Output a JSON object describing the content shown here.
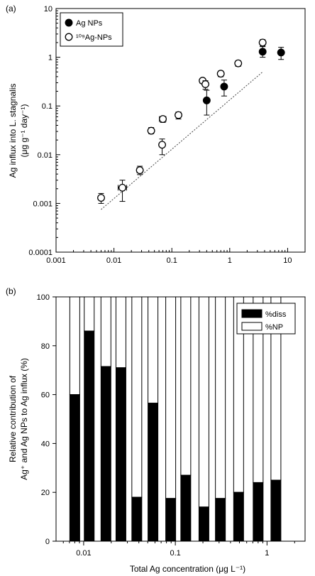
{
  "chart_data": [
    {
      "panel_label": "(a)",
      "type": "scatter",
      "y_scale": "log",
      "x_scale": "log",
      "xlim": [
        0.001,
        20
      ],
      "ylim": [
        0.0001,
        10
      ],
      "xticks": [
        {
          "v": 0.001,
          "label": "0.001"
        },
        {
          "v": 0.01,
          "label": "0.01"
        },
        {
          "v": 0.1,
          "label": "0.1"
        },
        {
          "v": 1,
          "label": "1"
        },
        {
          "v": 10,
          "label": "10"
        }
      ],
      "yticks": [
        {
          "v": 10,
          "label": "10"
        },
        {
          "v": 1,
          "label": "1"
        },
        {
          "v": 0.1,
          "label": "0.1"
        },
        {
          "v": 0.01,
          "label": "0.01"
        },
        {
          "v": 0.001,
          "label": "0.001"
        },
        {
          "v": 0.0001,
          "label": "0.0001"
        }
      ],
      "ylabel_line1": "Ag influx into L. stagnalis",
      "ylabel_line2": "(μg g⁻¹ day⁻¹)",
      "legend_position": "top-left",
      "series": [
        {
          "name": "Ag NPs",
          "marker": "filled-circle",
          "points": [
            {
              "x": 0.4,
              "y": 0.13,
              "ylo": 0.065,
              "yhi": 0.21
            },
            {
              "x": 0.8,
              "y": 0.25,
              "ylo": 0.16,
              "yhi": 0.34
            },
            {
              "x": 3.7,
              "y": 1.3,
              "ylo": 1.0,
              "yhi": 1.65
            },
            {
              "x": 7.7,
              "y": 1.25,
              "ylo": 0.9,
              "yhi": 1.6
            }
          ]
        },
        {
          "name": "¹⁰⁹Ag-NPs",
          "marker": "open-circle",
          "points": [
            {
              "x": 0.006,
              "y": 0.0013,
              "ylo": 0.001,
              "yhi": 0.0016,
              "xlo": 0.0055,
              "xhi": 0.0066
            },
            {
              "x": 0.014,
              "y": 0.0021,
              "ylo": 0.0011,
              "yhi": 0.003,
              "xlo": 0.0118,
              "xhi": 0.0165
            },
            {
              "x": 0.028,
              "y": 0.0048,
              "ylo": 0.0039,
              "yhi": 0.0058,
              "xlo": 0.025,
              "xhi": 0.031
            },
            {
              "x": 0.044,
              "y": 0.031,
              "ylo": 0.027,
              "yhi": 0.036
            },
            {
              "x": 0.068,
              "y": 0.016,
              "ylo": 0.01,
              "yhi": 0.021
            },
            {
              "x": 0.07,
              "y": 0.054,
              "ylo": 0.046,
              "yhi": 0.06,
              "xlo": 0.061,
              "xhi": 0.079
            },
            {
              "x": 0.13,
              "y": 0.065,
              "ylo": 0.054,
              "yhi": 0.075
            },
            {
              "x": 0.34,
              "y": 0.33,
              "ylo": 0.29,
              "yhi": 0.36
            },
            {
              "x": 0.38,
              "y": 0.28,
              "ylo": 0.22,
              "yhi": 0.33
            },
            {
              "x": 0.7,
              "y": 0.46,
              "ylo": 0.4,
              "yhi": 0.52
            },
            {
              "x": 1.4,
              "y": 0.75,
              "ylo": 0.65,
              "yhi": 0.85
            },
            {
              "x": 3.7,
              "y": 2.0,
              "ylo": 1.7,
              "yhi": 2.3
            }
          ]
        }
      ],
      "reference_line": {
        "style": "dotted",
        "points": [
          {
            "x": 0.006,
            "y": 0.00075
          },
          {
            "x": 3.7,
            "y": 0.5
          }
        ]
      }
    },
    {
      "panel_label": "(b)",
      "type": "bar",
      "stacked": true,
      "x_scale": "log",
      "xlim": [
        0.005,
        2.6
      ],
      "ylim": [
        0,
        100
      ],
      "xticks": [
        {
          "v": 0.01,
          "label": "0.01"
        },
        {
          "v": 0.1,
          "label": "0.1"
        },
        {
          "v": 1,
          "label": "1"
        }
      ],
      "yticks": [
        {
          "v": 0,
          "label": "0"
        },
        {
          "v": 20,
          "label": "20"
        },
        {
          "v": 40,
          "label": "40"
        },
        {
          "v": 60,
          "label": "60"
        },
        {
          "v": 80,
          "label": "80"
        },
        {
          "v": 100,
          "label": "100"
        }
      ],
      "xlabel": "Total Ag concentration (μg L⁻¹)",
      "ylabel_line1": "Relative contribution of",
      "ylabel_line2": "Ag⁺ and Ag NPs to Ag influx (%)",
      "legend_position": "top-right",
      "series": [
        {
          "name": "%diss",
          "fill": "#000000"
        },
        {
          "name": "%NP",
          "fill": "#ffffff"
        }
      ],
      "bars": [
        {
          "x": 0.008,
          "diss": 60
        },
        {
          "x": 0.0115,
          "diss": 86
        },
        {
          "x": 0.0175,
          "diss": 71.5
        },
        {
          "x": 0.0255,
          "diss": 71
        },
        {
          "x": 0.038,
          "diss": 18
        },
        {
          "x": 0.057,
          "diss": 56.5
        },
        {
          "x": 0.089,
          "diss": 17.5
        },
        {
          "x": 0.13,
          "diss": 27
        },
        {
          "x": 0.205,
          "diss": 14
        },
        {
          "x": 0.31,
          "diss": 17.5
        },
        {
          "x": 0.49,
          "diss": 20
        },
        {
          "x": 0.8,
          "diss": 24
        },
        {
          "x": 1.25,
          "diss": 25
        }
      ]
    }
  ]
}
